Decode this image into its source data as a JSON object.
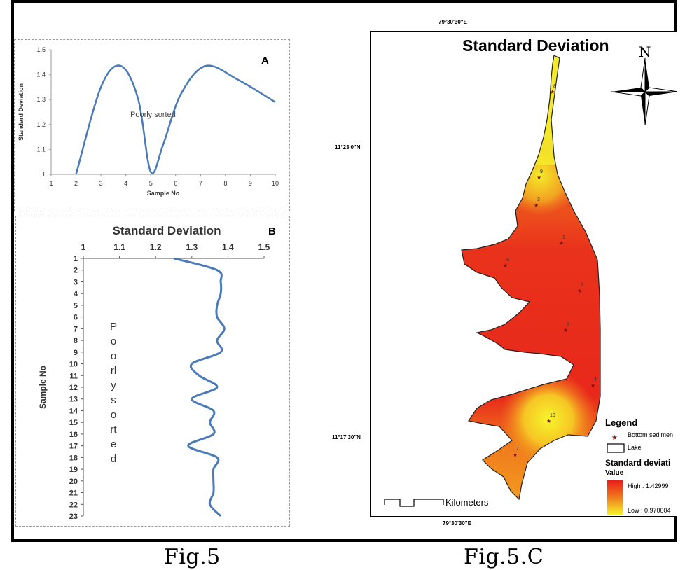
{
  "figure": {
    "caption_left": "Fig.5",
    "caption_right": "Fig.5.C"
  },
  "chart_data": [
    {
      "type": "line",
      "panel_label": "A",
      "title": "",
      "annotation": "Poorly sorted",
      "xlabel": "Sample No",
      "ylabel": "Standard Deviation",
      "xlim": [
        1,
        10
      ],
      "ylim": [
        1,
        1.5
      ],
      "xticks": [
        "1",
        "2",
        "3",
        "4",
        "5",
        "6",
        "7",
        "8",
        "9",
        "10"
      ],
      "yticks": [
        "1",
        "1.1",
        "1.2",
        "1.3",
        "1.4",
        "1.5"
      ],
      "series": [
        {
          "x": [
            2,
            3,
            3.8,
            4.5,
            5,
            5.5,
            6.2,
            7.2,
            8.5,
            10
          ],
          "y": [
            1.0,
            1.35,
            1.435,
            1.3,
            1.01,
            1.12,
            1.32,
            1.435,
            1.38,
            1.29
          ]
        }
      ],
      "color": "#4a7ab8"
    },
    {
      "type": "line",
      "panel_label": "B",
      "title": "Standard Deviation",
      "annotation": "Poorly sorted",
      "xlabel": "",
      "ylabel": "Sample No",
      "xlim": [
        1,
        1.5
      ],
      "xticks": [
        "1",
        "1.1",
        "1.2",
        "1.3",
        "1.4",
        "1.5"
      ],
      "yticks": [
        "1",
        "2",
        "3",
        "4",
        "5",
        "6",
        "7",
        "8",
        "9",
        "10",
        "11",
        "12",
        "13",
        "14",
        "15",
        "16",
        "17",
        "18",
        "19",
        "20",
        "21",
        "22",
        "23"
      ],
      "series": [
        {
          "sample": [
            1,
            2,
            3,
            4,
            5,
            6,
            7,
            8,
            9,
            10,
            11,
            12,
            13,
            14,
            15,
            16,
            17,
            18,
            19,
            20,
            21,
            22,
            23
          ],
          "value": [
            1.25,
            1.37,
            1.38,
            1.38,
            1.37,
            1.37,
            1.39,
            1.37,
            1.38,
            1.3,
            1.32,
            1.37,
            1.3,
            1.36,
            1.35,
            1.36,
            1.29,
            1.37,
            1.36,
            1.36,
            1.36,
            1.35,
            1.38
          ]
        }
      ],
      "color": "#4a7ab8"
    },
    {
      "type": "heatmap",
      "panel_label": "C",
      "title": "Standard Deviation",
      "coord_top": "79°30'30\"E",
      "coord_bottom": "79°30'30\"E",
      "lat_top": "11°23'0\"N",
      "lat_bottom": "11°17'30\"N",
      "north": "N",
      "scale_label": "Kilometers",
      "scale_ticks": "0 0.5 1     2",
      "legend": {
        "title": "Legend",
        "point_label": "Bottom sedimen",
        "lake_label": "Lake",
        "raster_title": "Standard deviati",
        "value_label": "Value",
        "high": "High : 1.42999",
        "low": "Low : 0.970004"
      },
      "sample_points": [
        "8",
        "9",
        "3",
        "1",
        "5",
        "2",
        "6",
        "4",
        "10",
        "7"
      ],
      "colors": {
        "high": "#e8191b",
        "mid": "#f07a1c",
        "low": "#f5f22a"
      }
    }
  ]
}
